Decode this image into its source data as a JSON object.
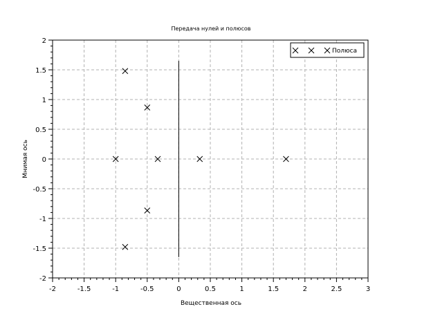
{
  "chart_data": {
    "type": "scatter",
    "title": "Передача нулей и полюсов",
    "xlabel": "Вещественная ось",
    "ylabel": "Мнимая ось",
    "xlim": [
      -2,
      3
    ],
    "ylim": [
      -2,
      2
    ],
    "grid": true,
    "legend_position": "top-right",
    "x_ticks": [
      {
        "value": -2,
        "label": "-2"
      },
      {
        "value": -1.5,
        "label": "-1.5"
      },
      {
        "value": -1,
        "label": "-1"
      },
      {
        "value": -0.5,
        "label": "-0.5"
      },
      {
        "value": 0,
        "label": "0"
      },
      {
        "value": 0.5,
        "label": "0.5"
      },
      {
        "value": 1,
        "label": "1"
      },
      {
        "value": 1.5,
        "label": "1.5"
      },
      {
        "value": 2,
        "label": "2"
      },
      {
        "value": 2.5,
        "label": "2.5"
      },
      {
        "value": 3,
        "label": "3"
      }
    ],
    "y_ticks": [
      {
        "value": 2,
        "label": "2"
      },
      {
        "value": 1.5,
        "label": "1.5"
      },
      {
        "value": 1,
        "label": "1"
      },
      {
        "value": 0.5,
        "label": "0.5"
      },
      {
        "value": 0,
        "label": "0"
      },
      {
        "value": -0.5,
        "label": "-0.5"
      },
      {
        "value": -1,
        "label": "-1"
      },
      {
        "value": -1.5,
        "label": "-1.5"
      },
      {
        "value": -2,
        "label": "-2"
      }
    ],
    "series": [
      {
        "name": "Полюса",
        "marker": "x",
        "color": "#000000",
        "points": [
          {
            "x": -0.85,
            "y": 1.48
          },
          {
            "x": -0.5,
            "y": 0.866
          },
          {
            "x": -1.0,
            "y": 0.0
          },
          {
            "x": -0.333,
            "y": 0.0
          },
          {
            "x": 0.333,
            "y": 0.0
          },
          {
            "x": 1.7,
            "y": 0.0
          },
          {
            "x": -0.5,
            "y": -0.866
          },
          {
            "x": -0.85,
            "y": -1.48
          }
        ]
      }
    ],
    "annotations": [
      {
        "type": "vertical-line",
        "x": 0,
        "y_from": -1.65,
        "y_to": 1.65,
        "color": "#000000"
      }
    ],
    "colors": {
      "grid": "#b0b0b0",
      "axes": "#000000",
      "marker": "#000000"
    }
  }
}
